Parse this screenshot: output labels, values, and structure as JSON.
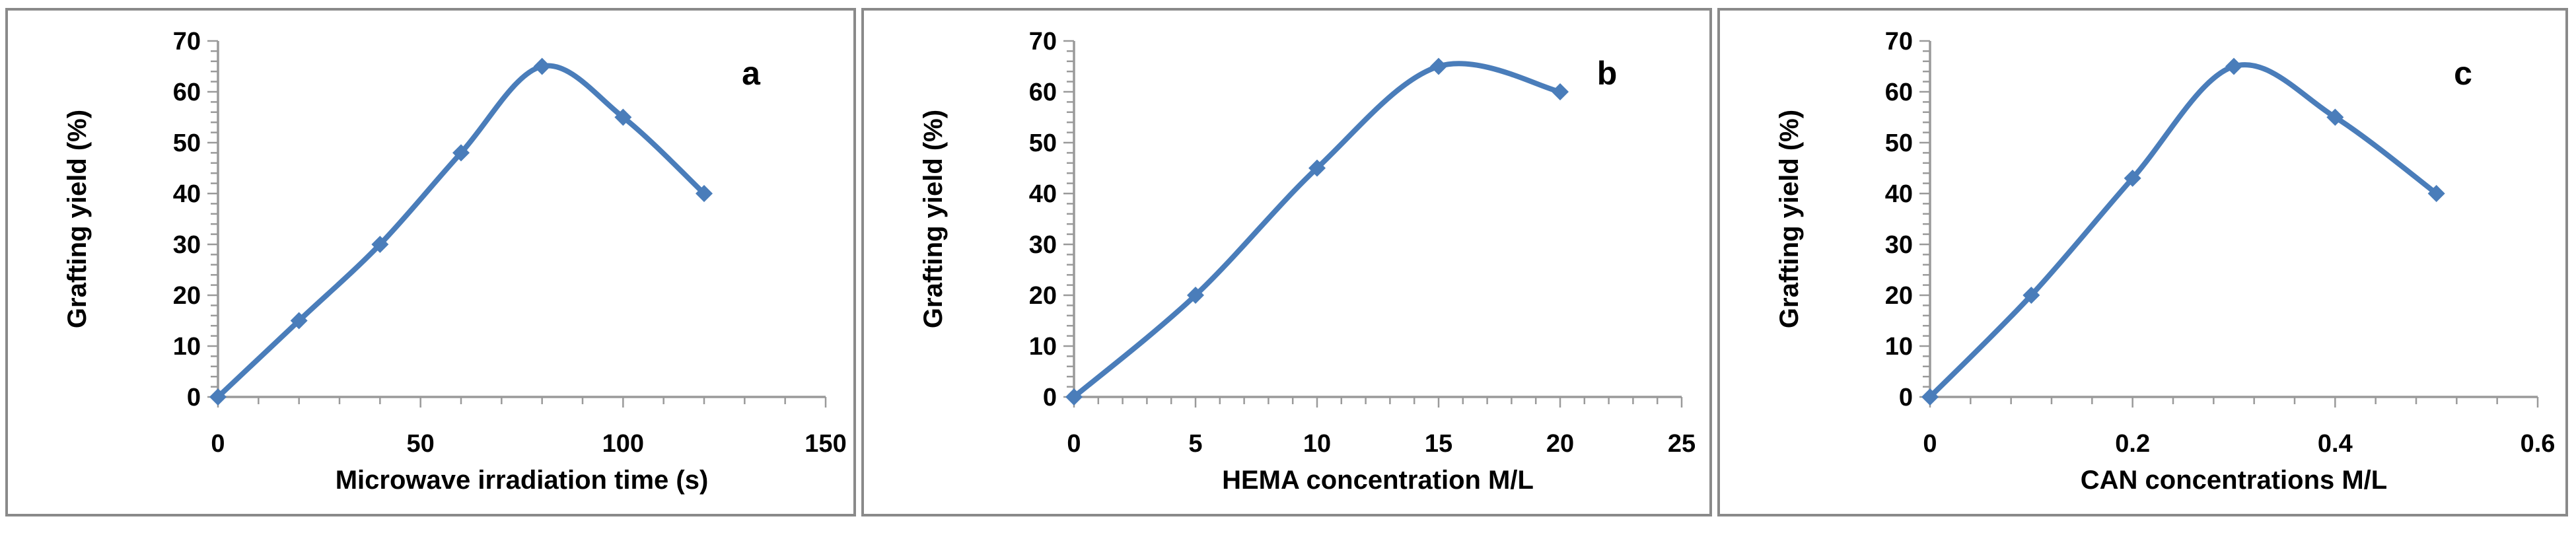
{
  "figure": {
    "background": "#ffffff",
    "panel_border_color": "#8a8a8a",
    "text_color": "#000000"
  },
  "chart_data": [
    {
      "type": "line",
      "panel_label": "a",
      "xlabel": "Microwave irradiation time (s)",
      "ylabel": "Grafting yield (%)",
      "x": [
        0,
        20,
        40,
        60,
        80,
        100,
        120
      ],
      "y": [
        0,
        15,
        30,
        48,
        65,
        55,
        40
      ],
      "xlim": [
        0,
        150
      ],
      "ylim": [
        0,
        70
      ],
      "x_tick_labels": [
        "0",
        "50",
        "100",
        "150"
      ],
      "x_major_step": 50,
      "x_minor_step": 10,
      "y_tick_labels": [
        "0",
        "10",
        "20",
        "30",
        "40",
        "50",
        "60",
        "70"
      ],
      "y_major_step": 10,
      "y_minor_step": 2,
      "line_color": "#4a7dba",
      "axis_color": "#9a9a9a",
      "marker": "diamond",
      "smooth_line": true,
      "grid": false,
      "legend": "none"
    },
    {
      "type": "line",
      "panel_label": "b",
      "xlabel": "HEMA concentration M/L",
      "ylabel": "Grafting yield (%)",
      "x": [
        0,
        5,
        10,
        15,
        20
      ],
      "y": [
        0,
        20,
        45,
        65,
        60
      ],
      "xlim": [
        0,
        25
      ],
      "ylim": [
        0,
        70
      ],
      "x_tick_labels": [
        "0",
        "5",
        "10",
        "15",
        "20",
        "25"
      ],
      "x_major_step": 5,
      "x_minor_step": 1,
      "y_tick_labels": [
        "0",
        "10",
        "20",
        "30",
        "40",
        "50",
        "60",
        "70"
      ],
      "y_major_step": 10,
      "y_minor_step": 2,
      "line_color": "#4a7dba",
      "axis_color": "#9a9a9a",
      "marker": "diamond",
      "smooth_line": true,
      "grid": false,
      "legend": "none"
    },
    {
      "type": "line",
      "panel_label": "c",
      "xlabel": "CAN concentrations M/L",
      "ylabel": "Grafting yield (%)",
      "x": [
        0,
        0.1,
        0.2,
        0.3,
        0.4,
        0.5
      ],
      "y": [
        0,
        20,
        43,
        65,
        55,
        40
      ],
      "xlim": [
        0,
        0.6
      ],
      "ylim": [
        0,
        70
      ],
      "x_tick_labels": [
        "0",
        "0.2",
        "0.4",
        "0.6"
      ],
      "x_major_step": 0.2,
      "x_minor_step": 0.04,
      "y_tick_labels": [
        "0",
        "10",
        "20",
        "30",
        "40",
        "50",
        "60",
        "70"
      ],
      "y_major_step": 10,
      "y_minor_step": 2,
      "line_color": "#4a7dba",
      "axis_color": "#9a9a9a",
      "marker": "diamond",
      "smooth_line": true,
      "grid": false,
      "legend": "none"
    }
  ]
}
